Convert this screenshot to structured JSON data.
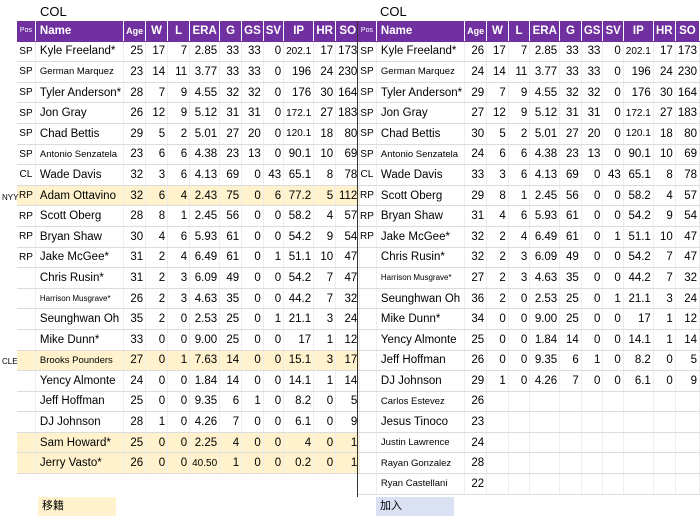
{
  "left": {
    "team": "COL",
    "rows": [
      [
        "SP",
        "Kyle Freeland*",
        "25",
        "17",
        "7",
        "2.85",
        "33",
        "33",
        "0",
        "202.1",
        "17",
        "173"
      ],
      [
        "SP",
        "German Marquez",
        "23",
        "14",
        "11",
        "3.77",
        "33",
        "33",
        "0",
        "196",
        "24",
        "230"
      ],
      [
        "SP",
        "Tyler Anderson*",
        "28",
        "7",
        "9",
        "4.55",
        "32",
        "32",
        "0",
        "176",
        "30",
        "164"
      ],
      [
        "SP",
        "Jon Gray",
        "26",
        "12",
        "9",
        "5.12",
        "31",
        "31",
        "0",
        "172.1",
        "27",
        "183"
      ],
      [
        "SP",
        "Chad Bettis",
        "29",
        "5",
        "2",
        "5.01",
        "27",
        "20",
        "0",
        "120.1",
        "18",
        "80"
      ],
      [
        "SP",
        "Antonio Senzatela",
        "23",
        "6",
        "6",
        "4.38",
        "23",
        "13",
        "0",
        "90.1",
        "10",
        "69"
      ],
      [
        "CL",
        "Wade Davis",
        "32",
        "3",
        "6",
        "4.13",
        "69",
        "0",
        "43",
        "65.1",
        "8",
        "78"
      ],
      [
        "RP",
        "Adam Ottavino",
        "32",
        "6",
        "4",
        "2.43",
        "75",
        "0",
        "6",
        "77.2",
        "5",
        "112"
      ],
      [
        "RP",
        "Scott Oberg",
        "28",
        "8",
        "1",
        "2.45",
        "56",
        "0",
        "0",
        "58.2",
        "4",
        "57"
      ],
      [
        "RP",
        "Bryan Shaw",
        "30",
        "4",
        "6",
        "5.93",
        "61",
        "0",
        "0",
        "54.2",
        "9",
        "54"
      ],
      [
        "RP",
        "Jake McGee*",
        "31",
        "2",
        "4",
        "6.49",
        "61",
        "0",
        "1",
        "51.1",
        "10",
        "47"
      ],
      [
        "",
        "Chris Rusin*",
        "31",
        "2",
        "3",
        "6.09",
        "49",
        "0",
        "0",
        "54.2",
        "7",
        "47"
      ],
      [
        "",
        "Harrison Musgrave*",
        "26",
        "2",
        "3",
        "4.63",
        "35",
        "0",
        "0",
        "44.2",
        "7",
        "32"
      ],
      [
        "",
        "Seunghwan Oh",
        "35",
        "2",
        "0",
        "2.53",
        "25",
        "0",
        "1",
        "21.1",
        "3",
        "24"
      ],
      [
        "",
        "Mike Dunn*",
        "33",
        "0",
        "0",
        "9.00",
        "25",
        "0",
        "0",
        "17",
        "1",
        "12"
      ],
      [
        "",
        "Brooks Pounders",
        "27",
        "0",
        "1",
        "7.63",
        "14",
        "0",
        "0",
        "15.1",
        "3",
        "17"
      ],
      [
        "",
        "Yency Almonte",
        "24",
        "0",
        "0",
        "1.84",
        "14",
        "0",
        "0",
        "14.1",
        "1",
        "14"
      ],
      [
        "",
        "Jeff Hoffman",
        "25",
        "0",
        "0",
        "9.35",
        "6",
        "1",
        "0",
        "8.2",
        "0",
        "5"
      ],
      [
        "",
        "DJ Johnson",
        "28",
        "1",
        "0",
        "4.26",
        "7",
        "0",
        "0",
        "6.1",
        "0",
        "9"
      ],
      [
        "",
        "Sam Howard*",
        "25",
        "0",
        "0",
        "2.25",
        "4",
        "0",
        "0",
        "4",
        "0",
        "1"
      ],
      [
        "",
        "Jerry Vasto*",
        "26",
        "0",
        "0",
        "40.50",
        "1",
        "0",
        "0",
        "0.2",
        "0",
        "1"
      ]
    ]
  },
  "right": {
    "team": "COL",
    "rows": [
      [
        "SP",
        "Kyle Freeland*",
        "26",
        "17",
        "7",
        "2.85",
        "33",
        "33",
        "0",
        "202.1",
        "17",
        "173"
      ],
      [
        "SP",
        "German Marquez",
        "24",
        "14",
        "11",
        "3.77",
        "33",
        "33",
        "0",
        "196",
        "24",
        "230"
      ],
      [
        "SP",
        "Tyler Anderson*",
        "29",
        "7",
        "9",
        "4.55",
        "32",
        "32",
        "0",
        "176",
        "30",
        "164"
      ],
      [
        "SP",
        "Jon Gray",
        "27",
        "12",
        "9",
        "5.12",
        "31",
        "31",
        "0",
        "172.1",
        "27",
        "183"
      ],
      [
        "SP",
        "Chad Bettis",
        "30",
        "5",
        "2",
        "5.01",
        "27",
        "20",
        "0",
        "120.1",
        "18",
        "80"
      ],
      [
        "SP",
        "Antonio Senzatela",
        "24",
        "6",
        "6",
        "4.38",
        "23",
        "13",
        "0",
        "90.1",
        "10",
        "69"
      ],
      [
        "CL",
        "Wade Davis",
        "33",
        "3",
        "6",
        "4.13",
        "69",
        "0",
        "43",
        "65.1",
        "8",
        "78"
      ],
      [
        "RP",
        "Scott Oberg",
        "29",
        "8",
        "1",
        "2.45",
        "56",
        "0",
        "0",
        "58.2",
        "4",
        "57"
      ],
      [
        "RP",
        "Bryan Shaw",
        "31",
        "4",
        "6",
        "5.93",
        "61",
        "0",
        "0",
        "54.2",
        "9",
        "54"
      ],
      [
        "RP",
        "Jake McGee*",
        "32",
        "2",
        "4",
        "6.49",
        "61",
        "0",
        "1",
        "51.1",
        "10",
        "47"
      ],
      [
        "",
        "Chris Rusin*",
        "32",
        "2",
        "3",
        "6.09",
        "49",
        "0",
        "0",
        "54.2",
        "7",
        "47"
      ],
      [
        "",
        "Harrison Musgrave*",
        "27",
        "2",
        "3",
        "4.63",
        "35",
        "0",
        "0",
        "44.2",
        "7",
        "32"
      ],
      [
        "",
        "Seunghwan Oh",
        "36",
        "2",
        "0",
        "2.53",
        "25",
        "0",
        "1",
        "21.1",
        "3",
        "24"
      ],
      [
        "",
        "Mike Dunn*",
        "34",
        "0",
        "0",
        "9.00",
        "25",
        "0",
        "0",
        "17",
        "1",
        "12"
      ],
      [
        "",
        "Yency Almonte",
        "25",
        "0",
        "0",
        "1.84",
        "14",
        "0",
        "0",
        "14.1",
        "1",
        "14"
      ],
      [
        "",
        "Jeff Hoffman",
        "26",
        "0",
        "0",
        "9.35",
        "6",
        "1",
        "0",
        "8.2",
        "0",
        "5"
      ],
      [
        "",
        "DJ Johnson",
        "29",
        "1",
        "0",
        "4.26",
        "7",
        "0",
        "0",
        "6.1",
        "0",
        "9"
      ],
      [
        "",
        "Carlos Estevez",
        "26",
        "",
        "",
        "",
        "",
        "",
        "",
        "",
        "",
        ""
      ],
      [
        "",
        "Jesus Tinoco",
        "23",
        "",
        "",
        "",
        "",
        "",
        "",
        "",
        "",
        ""
      ],
      [
        "",
        "Justin Lawrence",
        "24",
        "",
        "",
        "",
        "",
        "",
        "",
        "",
        "",
        ""
      ],
      [
        "",
        "Rayan Gonzalez",
        "28",
        "",
        "",
        "",
        "",
        "",
        "",
        "",
        "",
        ""
      ],
      [
        "",
        "Ryan Castellani",
        "22",
        "",
        "",
        "",
        "",
        "",
        "",
        "",
        "",
        ""
      ]
    ]
  },
  "headers": [
    "Pos",
    "Name",
    "Age",
    "W",
    "L",
    "ERA",
    "G",
    "GS",
    "SV",
    "IP",
    "HR",
    "SO"
  ],
  "side_labels": {
    "ottavino": "NYY",
    "pounders": "CLE"
  },
  "legend": {
    "departed": "移籍",
    "joined": "加入"
  },
  "colors": {
    "header_bg": "#7030a0",
    "departed": "#fff2cc",
    "joined": "#d9e1f2"
  }
}
